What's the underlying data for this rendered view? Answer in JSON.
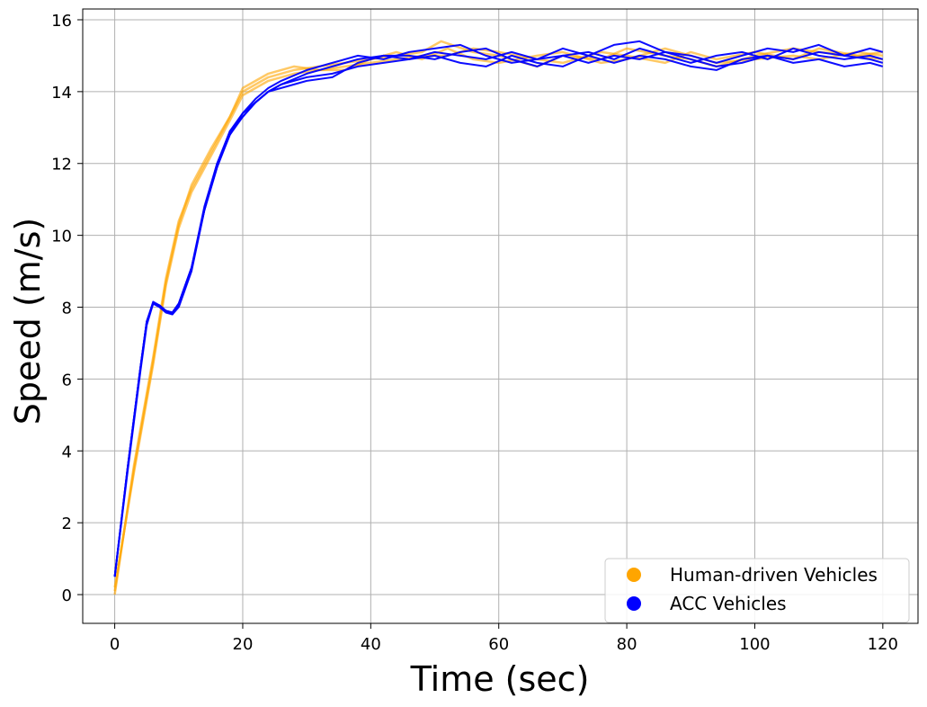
{
  "chart_data": {
    "type": "line",
    "title": "",
    "xlabel": "Time (sec)",
    "ylabel": "Speed (m/s)",
    "xlim": [
      -5,
      125.5
    ],
    "ylim": [
      -0.8,
      16.3
    ],
    "xticks": [
      0,
      20,
      40,
      60,
      80,
      100,
      120
    ],
    "yticks": [
      0,
      2,
      4,
      6,
      8,
      10,
      12,
      14,
      16
    ],
    "grid": true,
    "legend_position": "lower-right",
    "legend": [
      {
        "label": "Human-driven Vehicles",
        "color": "#ffa500"
      },
      {
        "label": "ACC Vehicles",
        "color": "#0000ff"
      }
    ],
    "series": [
      {
        "group": "Human-driven Vehicles",
        "color": "#ffa500",
        "x": [
          0,
          3,
          6,
          8,
          10,
          12,
          15,
          18,
          20,
          24,
          28,
          32,
          36,
          40,
          44,
          48,
          51,
          56,
          60,
          66,
          70,
          76,
          80,
          86,
          90,
          94,
          100,
          106,
          110,
          116,
          120
        ],
        "y": [
          0,
          3.6,
          6.6,
          8.8,
          10.4,
          11.3,
          12.3,
          13.3,
          14.0,
          14.4,
          14.6,
          14.7,
          14.8,
          14.9,
          15.0,
          15.1,
          15.4,
          15.1,
          15.0,
          14.7,
          15.0,
          14.9,
          15.2,
          15.0,
          14.9,
          14.7,
          15.0,
          15.2,
          15.1,
          15.0,
          15.1
        ]
      },
      {
        "group": "Human-driven Vehicles",
        "color": "#ffa500",
        "x": [
          0,
          3,
          6,
          8,
          10,
          12,
          15,
          18,
          20,
          24,
          28,
          32,
          36,
          40,
          44,
          48,
          52,
          56,
          60,
          66,
          70,
          76,
          80,
          86,
          90,
          94,
          100,
          106,
          110,
          116,
          120
        ],
        "y": [
          0.2,
          3.4,
          6.4,
          8.6,
          10.2,
          11.2,
          12.2,
          13.2,
          13.9,
          14.3,
          14.5,
          14.6,
          14.7,
          14.8,
          14.9,
          15.0,
          15.0,
          15.2,
          15.1,
          14.9,
          14.8,
          15.1,
          15.0,
          14.8,
          15.1,
          14.9,
          15.1,
          14.9,
          15.2,
          15.0,
          14.9
        ]
      },
      {
        "group": "Human-driven Vehicles",
        "color": "#ffa500",
        "x": [
          0,
          3,
          6,
          8,
          10,
          12,
          15,
          18,
          20,
          24,
          28,
          32,
          36,
          40,
          44,
          48,
          52,
          56,
          60,
          66,
          70,
          76,
          80,
          86,
          90,
          94,
          100,
          106,
          110,
          116,
          120
        ],
        "y": [
          0.1,
          3.5,
          6.5,
          8.7,
          10.3,
          11.4,
          12.4,
          13.3,
          14.1,
          14.5,
          14.7,
          14.6,
          14.6,
          14.9,
          15.1,
          14.9,
          15.2,
          14.9,
          14.8,
          15.0,
          15.1,
          14.8,
          14.9,
          15.2,
          15.0,
          14.8,
          14.9,
          15.0,
          14.9,
          15.1,
          15.0
        ]
      },
      {
        "group": "ACC Vehicles",
        "color": "#0000ff",
        "x": [
          0,
          2,
          4,
          5,
          6,
          7,
          8,
          9,
          10,
          12,
          14,
          16,
          18,
          20,
          22,
          24,
          26,
          30,
          34,
          38,
          42,
          46,
          50,
          54,
          58,
          62,
          66,
          70,
          74,
          78,
          82,
          86,
          90,
          94,
          98,
          102,
          106,
          110,
          114,
          118,
          120
        ],
        "y": [
          0.5,
          3.5,
          6.3,
          7.6,
          8.1,
          8.05,
          7.9,
          7.85,
          8.1,
          9.1,
          10.8,
          12.0,
          12.9,
          13.4,
          13.8,
          14.1,
          14.3,
          14.6,
          14.8,
          15.0,
          14.9,
          15.1,
          15.2,
          15.3,
          15.0,
          14.8,
          14.9,
          15.2,
          15.0,
          15.3,
          15.4,
          15.1,
          15.0,
          14.8,
          15.0,
          15.2,
          15.1,
          15.3,
          15.0,
          15.2,
          15.1
        ]
      },
      {
        "group": "ACC Vehicles",
        "color": "#0000ff",
        "x": [
          0,
          2,
          4,
          5,
          6,
          7,
          8,
          9,
          10,
          12,
          14,
          16,
          18,
          20,
          22,
          24,
          26,
          30,
          34,
          38,
          42,
          46,
          50,
          54,
          58,
          62,
          66,
          70,
          74,
          78,
          82,
          86,
          90,
          94,
          98,
          102,
          106,
          110,
          114,
          118,
          120
        ],
        "y": [
          0.5,
          3.4,
          6.2,
          7.5,
          8.1,
          8.0,
          7.85,
          7.8,
          8.0,
          9.0,
          10.7,
          11.9,
          12.8,
          13.3,
          13.7,
          14.0,
          14.2,
          14.5,
          14.7,
          14.9,
          15.0,
          15.0,
          14.9,
          15.1,
          15.2,
          14.9,
          14.7,
          15.0,
          15.1,
          14.9,
          15.2,
          15.0,
          14.8,
          15.0,
          15.1,
          14.9,
          15.2,
          15.0,
          14.9,
          15.0,
          14.9
        ]
      },
      {
        "group": "ACC Vehicles",
        "color": "#0000ff",
        "x": [
          0,
          2,
          4,
          5,
          6,
          7,
          8,
          9,
          10,
          12,
          14,
          16,
          18,
          20,
          22,
          24,
          26,
          30,
          34,
          38,
          42,
          46,
          50,
          54,
          58,
          62,
          66,
          70,
          74,
          78,
          82,
          86,
          90,
          94,
          98,
          102,
          106,
          110,
          114,
          118,
          120
        ],
        "y": [
          0.5,
          3.5,
          6.3,
          7.6,
          8.15,
          8.05,
          7.9,
          7.8,
          8.05,
          9.05,
          10.7,
          12.0,
          12.8,
          13.4,
          13.7,
          14.0,
          14.1,
          14.3,
          14.4,
          14.8,
          15.0,
          14.9,
          15.0,
          14.8,
          14.7,
          15.0,
          14.8,
          14.7,
          15.0,
          14.8,
          15.0,
          14.9,
          14.7,
          14.6,
          14.9,
          15.0,
          14.8,
          14.9,
          14.7,
          14.8,
          14.7
        ]
      },
      {
        "group": "ACC Vehicles",
        "color": "#0000ff",
        "x": [
          0,
          2,
          4,
          5,
          6,
          7,
          8,
          9,
          10,
          12,
          14,
          16,
          18,
          20,
          22,
          24,
          26,
          30,
          34,
          38,
          42,
          46,
          50,
          54,
          58,
          62,
          66,
          70,
          74,
          78,
          82,
          86,
          90,
          94,
          98,
          102,
          106,
          110,
          114,
          118,
          120
        ],
        "y": [
          0.5,
          3.5,
          6.3,
          7.6,
          8.1,
          8.05,
          7.9,
          7.85,
          8.1,
          9.1,
          10.7,
          11.9,
          12.9,
          13.3,
          13.7,
          14.0,
          14.2,
          14.4,
          14.5,
          14.7,
          14.8,
          14.9,
          15.1,
          15.0,
          14.9,
          15.1,
          14.9,
          15.0,
          14.8,
          15.0,
          14.9,
          15.1,
          14.9,
          14.7,
          14.8,
          15.0,
          14.9,
          15.1,
          15.0,
          14.9,
          14.8
        ]
      }
    ]
  }
}
